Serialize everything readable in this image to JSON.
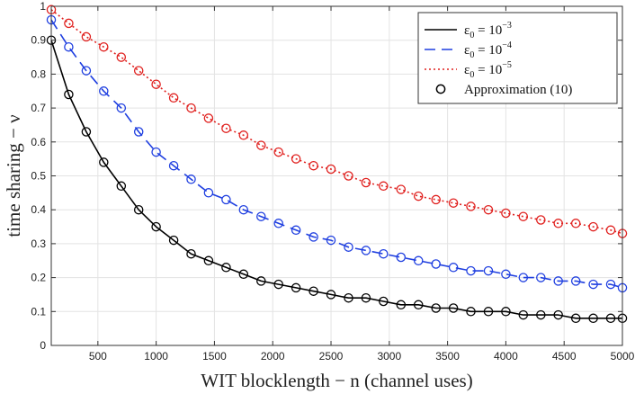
{
  "chart_data": {
    "type": "line",
    "title": "",
    "xlabel": "WIT blocklength − n (channel uses)",
    "ylabel": "time sharing − ν",
    "xlim": [
      100,
      5000
    ],
    "ylim": [
      0,
      1
    ],
    "xticks": [
      500,
      1000,
      1500,
      2000,
      2500,
      3000,
      3500,
      4000,
      4500,
      5000
    ],
    "yticks": [
      0,
      0.1,
      0.2,
      0.3,
      0.4,
      0.5,
      0.6,
      0.7,
      0.8,
      0.9,
      1
    ],
    "xtick_labels": [
      "500",
      "1000",
      "1500",
      "2000",
      "2500",
      "3000",
      "3500",
      "4000",
      "4500",
      "5000"
    ],
    "ytick_labels": [
      "0",
      "0.1",
      "0.2",
      "0.3",
      "0.4",
      "0.5",
      "0.6",
      "0.7",
      "0.8",
      "0.9",
      "1"
    ],
    "grid": true,
    "legend_position": "top-right",
    "x": [
      100,
      250,
      400,
      550,
      700,
      850,
      1000,
      1150,
      1300,
      1450,
      1600,
      1750,
      1900,
      2050,
      2200,
      2350,
      2500,
      2650,
      2800,
      2950,
      3100,
      3250,
      3400,
      3550,
      3700,
      3850,
      4000,
      4150,
      4300,
      4450,
      4600,
      4750,
      4900,
      5000
    ],
    "series": [
      {
        "name": "ε₀ = 10⁻³",
        "legend_base": "ε",
        "legend_sub": "0",
        "legend_mid": " = 10",
        "legend_exp": "−3",
        "color": "#000000",
        "dash": "",
        "values": [
          0.9,
          0.74,
          0.63,
          0.54,
          0.47,
          0.4,
          0.35,
          0.31,
          0.27,
          0.25,
          0.23,
          0.21,
          0.19,
          0.18,
          0.17,
          0.16,
          0.15,
          0.14,
          0.14,
          0.13,
          0.12,
          0.12,
          0.11,
          0.11,
          0.1,
          0.1,
          0.1,
          0.09,
          0.09,
          0.09,
          0.08,
          0.08,
          0.08,
          0.08
        ]
      },
      {
        "name": "ε₀ = 10⁻⁴",
        "legend_base": "ε",
        "legend_sub": "0",
        "legend_mid": " = 10",
        "legend_exp": "−4",
        "color": "#1f3fe0",
        "dash": "12 7",
        "values": [
          0.96,
          0.88,
          0.81,
          0.75,
          0.7,
          0.63,
          0.57,
          0.53,
          0.49,
          0.45,
          0.43,
          0.4,
          0.38,
          0.36,
          0.34,
          0.32,
          0.31,
          0.29,
          0.28,
          0.27,
          0.26,
          0.25,
          0.24,
          0.23,
          0.22,
          0.22,
          0.21,
          0.2,
          0.2,
          0.19,
          0.19,
          0.18,
          0.18,
          0.17
        ]
      },
      {
        "name": "ε₀ = 10⁻⁵",
        "legend_base": "ε",
        "legend_sub": "0",
        "legend_mid": " = 10",
        "legend_exp": "−5",
        "color": "#e0201e",
        "dash": "2 3",
        "values": [
          0.99,
          0.95,
          0.91,
          0.88,
          0.85,
          0.81,
          0.77,
          0.73,
          0.7,
          0.67,
          0.64,
          0.62,
          0.59,
          0.57,
          0.55,
          0.53,
          0.52,
          0.5,
          0.48,
          0.47,
          0.46,
          0.44,
          0.43,
          0.42,
          0.41,
          0.4,
          0.39,
          0.38,
          0.37,
          0.36,
          0.36,
          0.35,
          0.34,
          0.33
        ]
      }
    ],
    "markers": {
      "name": "Approximation (10)",
      "color": "#000000",
      "shape": "open-circle"
    }
  }
}
